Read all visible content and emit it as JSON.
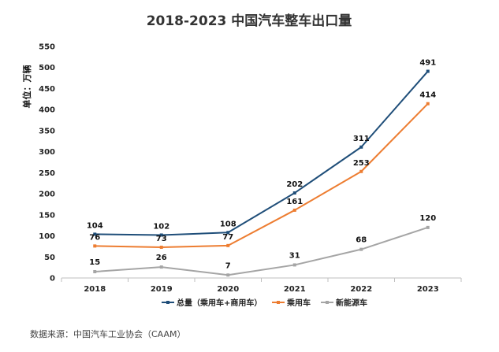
{
  "chart_data": {
    "type": "line",
    "title": "2018-2023 中国汽车整车出口量",
    "ylabel": "单位：万辆",
    "xlabel": "",
    "categories": [
      "2018",
      "2019",
      "2020",
      "2021",
      "2022",
      "2023"
    ],
    "ylim": [
      0,
      550
    ],
    "yticks": [
      0,
      50,
      100,
      150,
      200,
      250,
      300,
      350,
      400,
      450,
      500,
      550
    ],
    "grid": false,
    "legend": "bottom",
    "series": [
      {
        "name": "总量（乘用车+商用车）",
        "color": "#1f4e79",
        "values": [
          104,
          102,
          108,
          202,
          311,
          491
        ]
      },
      {
        "name": "乘用车",
        "color": "#ed7d31",
        "values": [
          76,
          73,
          77,
          161,
          253,
          414
        ]
      },
      {
        "name": "新能源车",
        "color": "#a5a5a5",
        "values": [
          15,
          26,
          7,
          31,
          68,
          120
        ]
      }
    ]
  },
  "source": "数据来源：中国汽车工业协会（CAAM）"
}
